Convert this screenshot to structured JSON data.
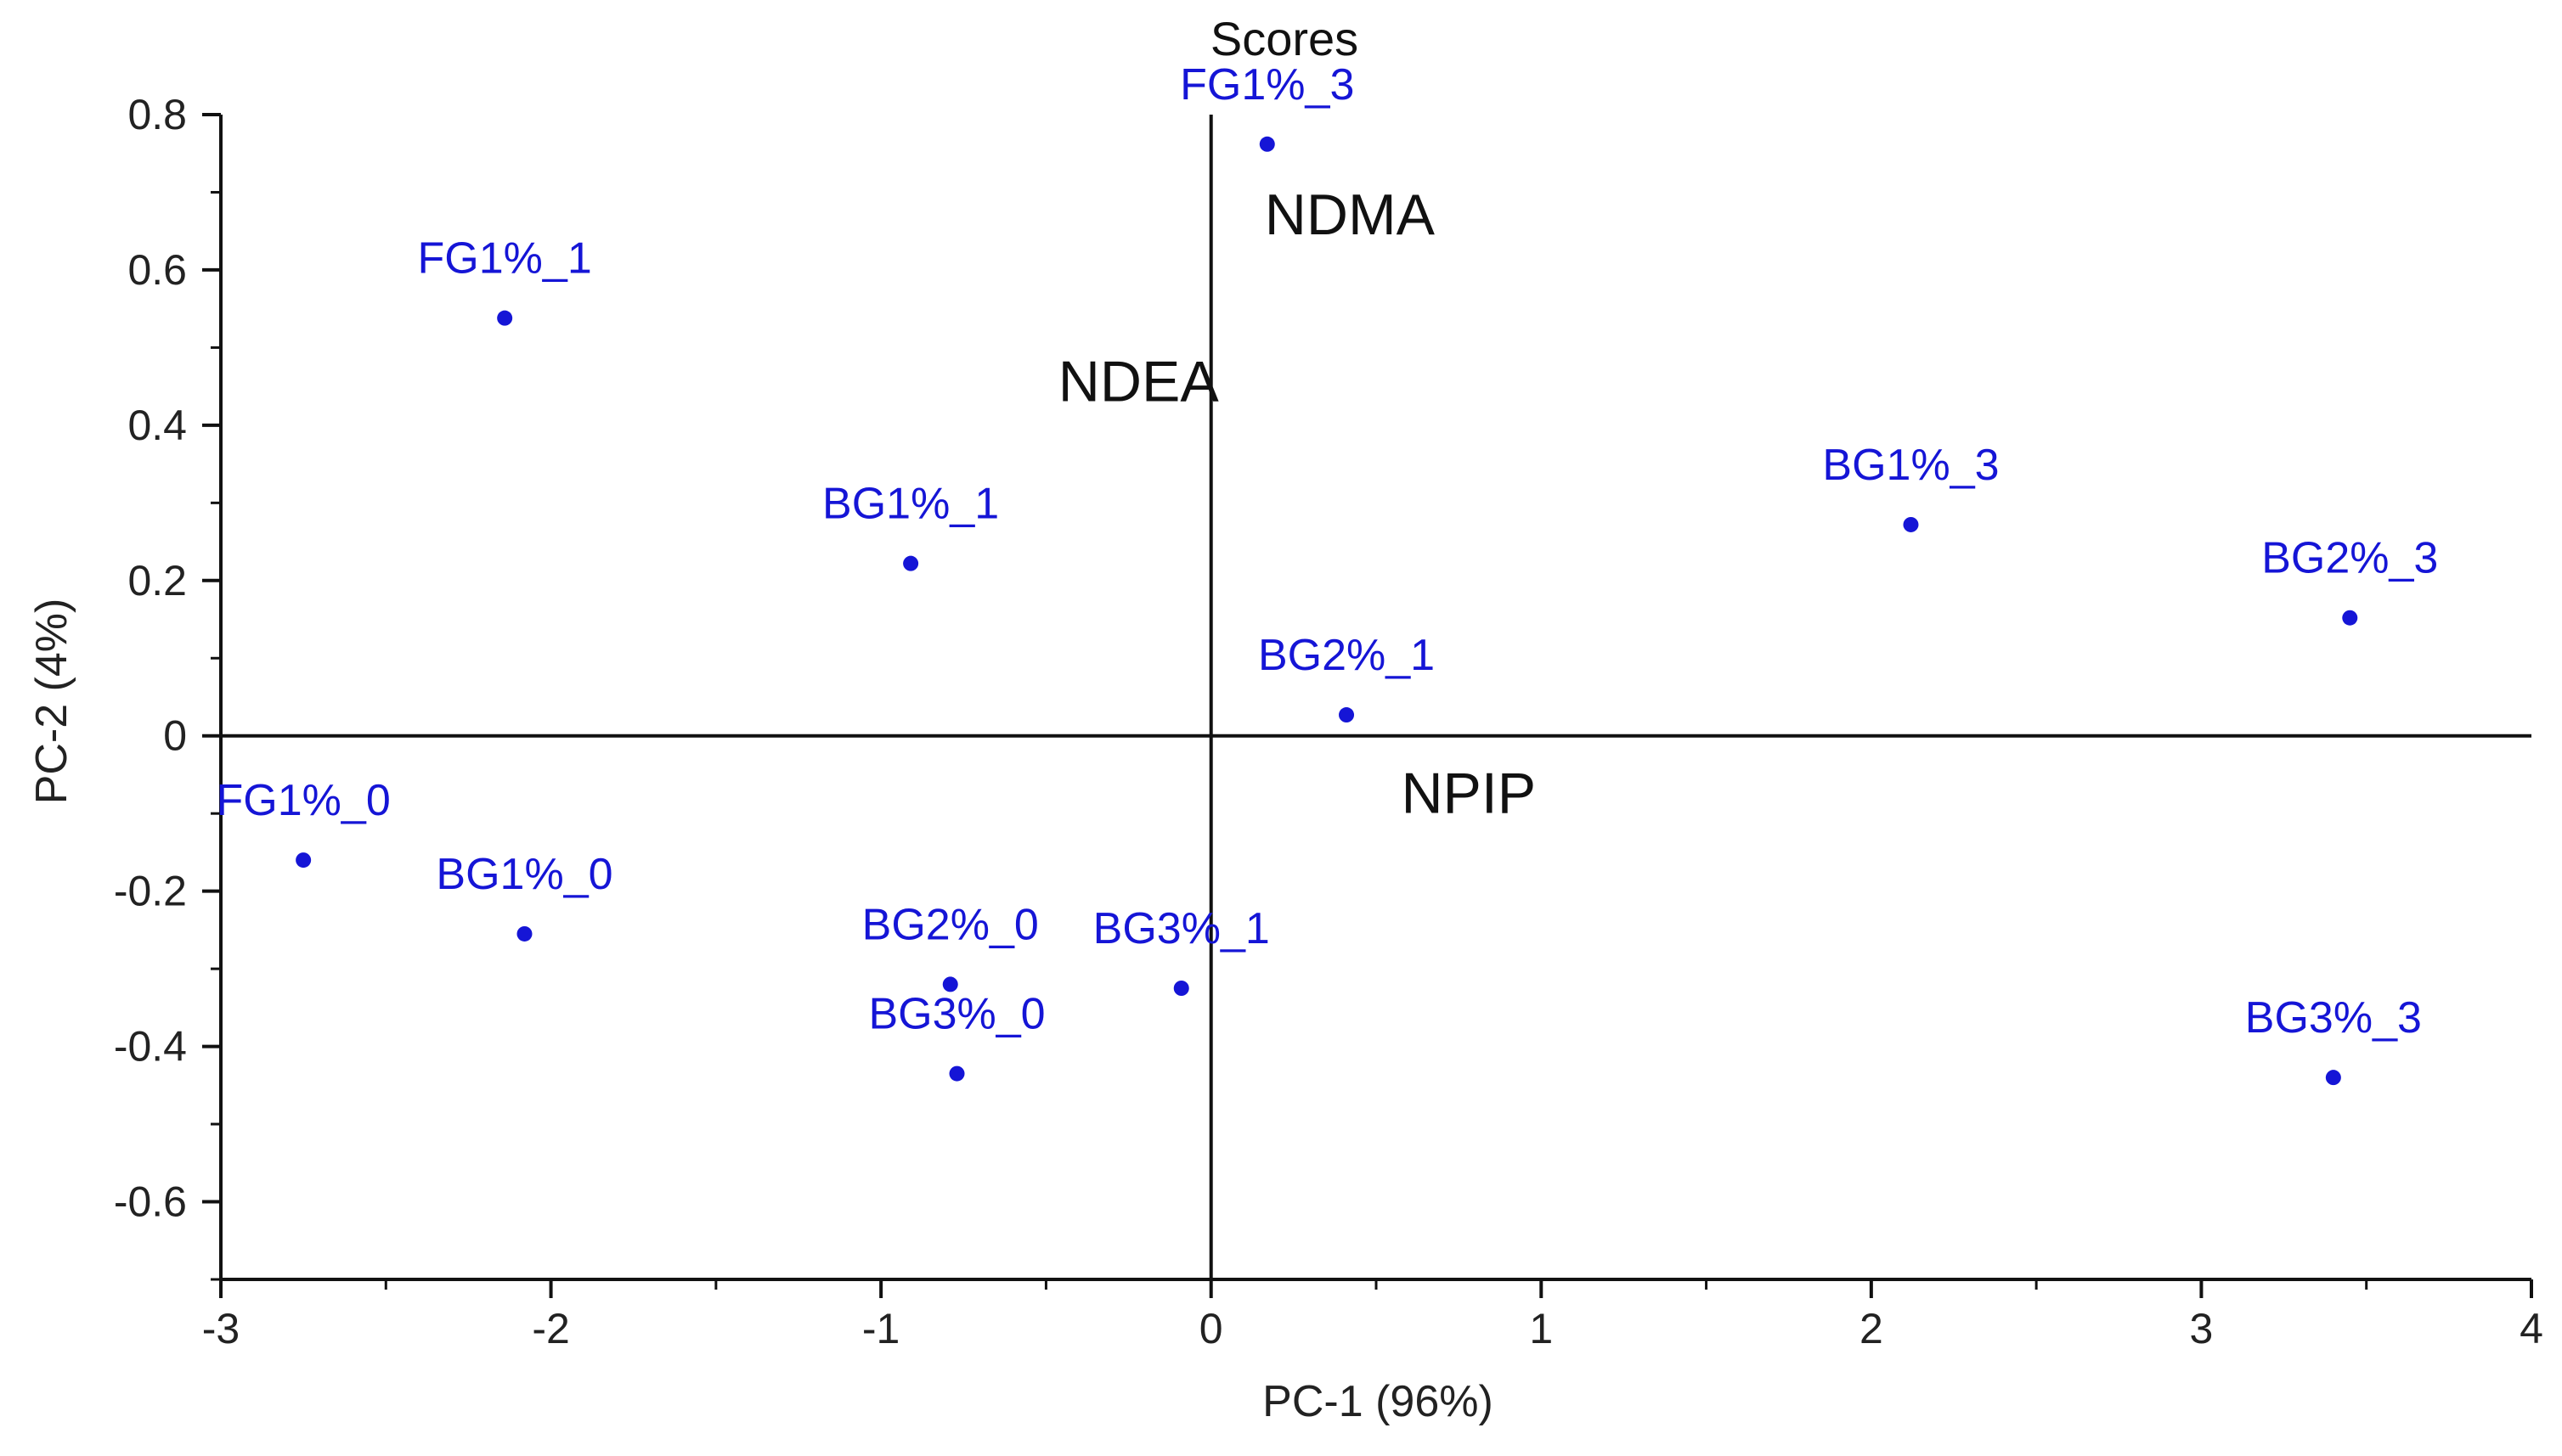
{
  "chart_data": {
    "type": "scatter",
    "title": "Scores",
    "xlabel": "PC-1 (96%)",
    "ylabel": "PC-2 (4%)",
    "xlim": [
      -3,
      4
    ],
    "ylim": [
      -0.7,
      0.8
    ],
    "x_ticks": [
      -3,
      -2,
      -1,
      0,
      1,
      2,
      3,
      4
    ],
    "x_tick_labels": [
      "-3",
      "-2",
      "-1",
      "0",
      "1",
      "2",
      "3",
      "4"
    ],
    "y_ticks": [
      -0.6,
      -0.4,
      -0.2,
      0,
      0.2,
      0.4,
      0.6,
      0.8
    ],
    "y_tick_labels": [
      "-0.6",
      "-0.4",
      "-0.2",
      "0",
      "0.2",
      "0.4",
      "0.6",
      "0.8"
    ],
    "grid": false,
    "point_color": "#1515d6",
    "loading_color": "#111111",
    "points": [
      {
        "label": "FG1%_0",
        "x": -2.75,
        "y": -0.16
      },
      {
        "label": "BG1%_0",
        "x": -2.08,
        "y": -0.255
      },
      {
        "label": "FG1%_1",
        "x": -2.14,
        "y": 0.538
      },
      {
        "label": "BG1%_1",
        "x": -0.91,
        "y": 0.222
      },
      {
        "label": "BG2%_0",
        "x": -0.79,
        "y": -0.32
      },
      {
        "label": "BG3%_0",
        "x": -0.77,
        "y": -0.435
      },
      {
        "label": "BG3%_1",
        "x": -0.09,
        "y": -0.325
      },
      {
        "label": "FG1%_3",
        "x": 0.17,
        "y": 0.762
      },
      {
        "label": "BG2%_1",
        "x": 0.41,
        "y": 0.027
      },
      {
        "label": "BG1%_3",
        "x": 2.12,
        "y": 0.272
      },
      {
        "label": "BG2%_3",
        "x": 3.45,
        "y": 0.152
      },
      {
        "label": "BG3%_3",
        "x": 3.4,
        "y": -0.44
      }
    ],
    "loadings": [
      {
        "label": "NDMA",
        "x": 0.42,
        "y": 0.67
      },
      {
        "label": "NDEA",
        "x": -0.22,
        "y": 0.455
      },
      {
        "label": "NPIP",
        "x": 0.78,
        "y": -0.075
      }
    ]
  }
}
